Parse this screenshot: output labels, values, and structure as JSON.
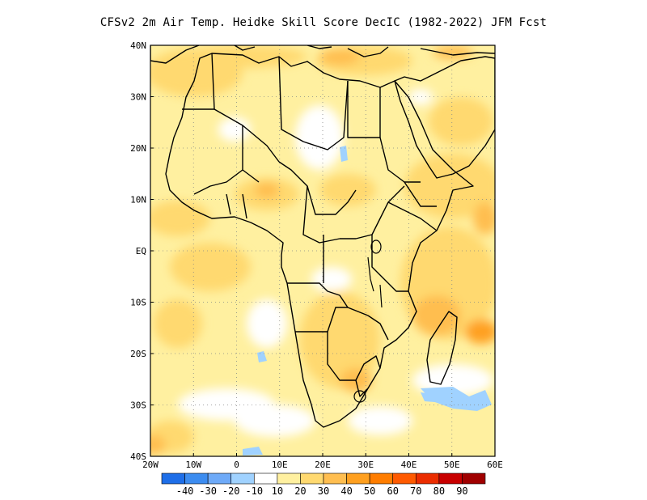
{
  "title": "CFSv2  2m Air Temp. Heidke Skill Score DecIC (1982-2022) JFM Fcst",
  "map": {
    "lon_range": [
      -20,
      60
    ],
    "lat_range": [
      -40,
      40
    ],
    "grid_lines": "dotted",
    "lon_ticks": [
      "20W",
      "10W",
      "0",
      "10E",
      "20E",
      "30E",
      "40E",
      "50E",
      "60E"
    ],
    "lat_ticks": [
      "40N",
      "30N",
      "20N",
      "10N",
      "EQ",
      "10S",
      "20S",
      "30S",
      "40S"
    ],
    "region": "Africa"
  },
  "colorbar": {
    "colors": [
      "#1e6ee8",
      "#3c8cf0",
      "#6eaaf8",
      "#a0d2ff",
      "#ffffff",
      "#fff0a0",
      "#ffd970",
      "#ffbe50",
      "#ffa020",
      "#ff7d00",
      "#ff5a00",
      "#eb2d00",
      "#c80000",
      "#a00000"
    ],
    "labels": [
      "-40",
      "-30",
      "-20",
      "-10",
      "10",
      "20",
      "30",
      "40",
      "50",
      "60",
      "70",
      "80",
      "90"
    ]
  }
}
